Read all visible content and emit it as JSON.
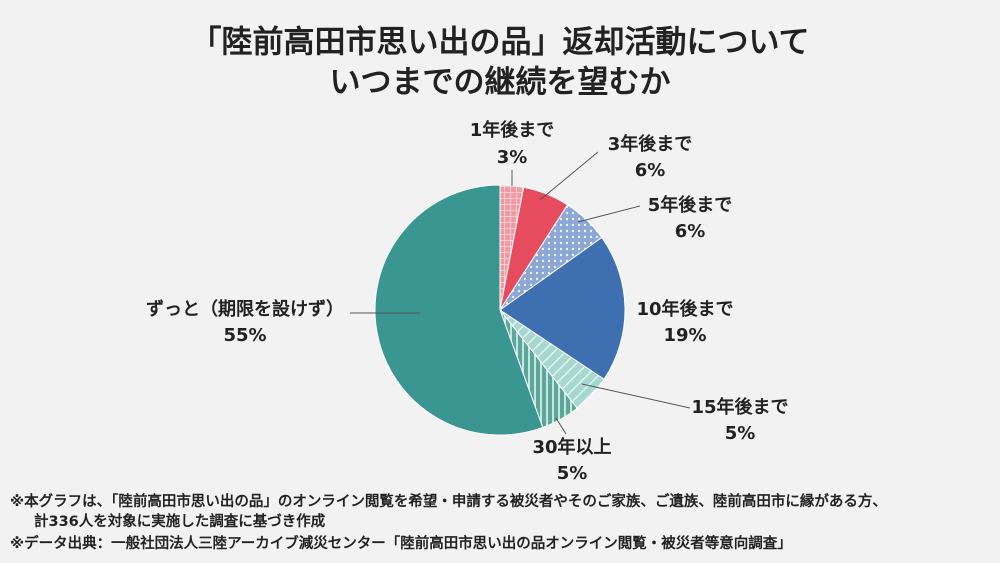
{
  "chart_data": {
    "type": "pie",
    "title": [
      "「陸前高田市思い出の品」返却活動について",
      "いつまでの継続を望むか"
    ],
    "categories": [
      "1年後まで",
      "3年後まで",
      "5年後まで",
      "10年後まで",
      "15年後まで",
      "30年以上",
      "ずっと（期限を設けず）"
    ],
    "values": [
      3,
      6,
      6,
      19,
      5,
      5,
      55
    ],
    "value_labels": [
      "3%",
      "6%",
      "6%",
      "19%",
      "5%",
      "5%",
      "55%"
    ],
    "colors": [
      "#f29aa4",
      "#e74c5e",
      "#8ca6d6",
      "#3e6fb0",
      "#a6d8d0",
      "#5aa89c",
      "#3a9691"
    ],
    "patterns": [
      "grid",
      null,
      "dots",
      null,
      "diagonal",
      "vertical",
      null
    ],
    "notes": [
      "※本グラフは、「陸前高田市思い出の品」のオンライン閲覧を希望・申請する被災者やそのご家族、ご遺族、陸前高田市に縁がある方、",
      "計336人を対象に実施した調査に基づき作成",
      "※データ出典：一般社団法人三陸アーカイブ減災センター「陸前高田市思い出の品オンライン閲覧・被災者等意向調査」"
    ]
  }
}
